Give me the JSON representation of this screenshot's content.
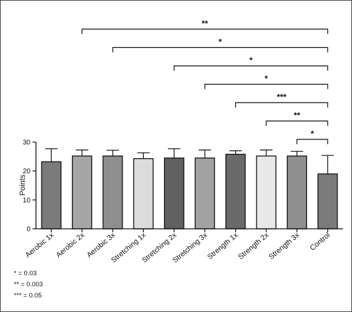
{
  "chart_data": {
    "type": "bar",
    "categories": [
      "Aerobic 1x",
      "Aerobic 2x",
      "Aerobic 3x",
      "Stretching 1x",
      "Stretching 2x",
      "Stretching 3x",
      "Strength 1x",
      "Strength 2x",
      "Strength 3x",
      "Control"
    ],
    "values": [
      23.2,
      25.2,
      25.2,
      24.3,
      24.5,
      24.5,
      25.8,
      25.2,
      25.2,
      19.0
    ],
    "error_upper": [
      27.7,
      27.3,
      27.2,
      26.3,
      27.7,
      27.3,
      27.0,
      27.3,
      26.8,
      25.4
    ],
    "bar_colors": [
      "#7b7b7b",
      "#a6a6a8",
      "#8e8e8e",
      "#dcdcdc",
      "#616161",
      "#a2a2a4",
      "#6a6a6a",
      "#e8e8e8",
      "#8f8f8f",
      "#7b7b7b"
    ],
    "ylabel": "Points",
    "ylim": [
      0,
      30
    ],
    "yticks": [
      0,
      10,
      20,
      30
    ],
    "grid": false,
    "comparisons": [
      {
        "from": "Aerobic 2x",
        "to": "Control",
        "label": "**"
      },
      {
        "from": "Aerobic 3x",
        "to": "Control",
        "label": "*"
      },
      {
        "from": "Stretching 2x",
        "to": "Control",
        "label": "*"
      },
      {
        "from": "Stretching 3x",
        "to": "Control",
        "label": "*"
      },
      {
        "from": "Strength 1x",
        "to": "Control",
        "label": "***"
      },
      {
        "from": "Strength 2x",
        "to": "Control",
        "label": "**"
      },
      {
        "from": "Strength 3x",
        "to": "Control",
        "label": "*"
      }
    ]
  },
  "legend": [
    {
      "symbol": "*",
      "text": " = 0.03"
    },
    {
      "symbol": "**",
      "text": " = 0.003"
    },
    {
      "symbol": "***",
      "text": " = 0.05"
    }
  ]
}
